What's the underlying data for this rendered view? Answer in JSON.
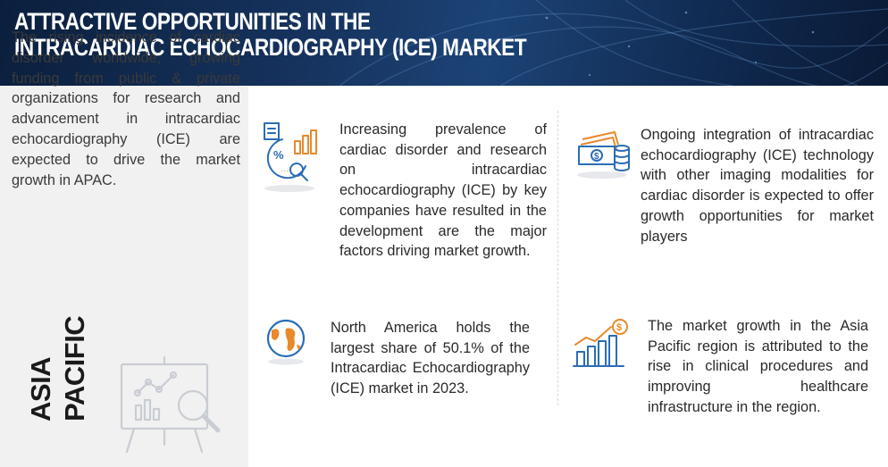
{
  "banner": {
    "title_line1": "ATTRACTIVE OPPORTUNITIES IN THE",
    "title_line2": "INTRACARDIAC ECHOCARDIOGRAPHY (ICE) MARKET"
  },
  "left_panel": {
    "summary": "The rising incidence of cardiac disorder worldwide, growing funding from public & private organizations for research and advancement in intracardiac echocardiography (ICE) are expected to drive the market growth in APAC.",
    "region_line1": "ASIA",
    "region_line2": "PACIFIC",
    "icon": "presentation-chart-magnifier-icon"
  },
  "cards": [
    {
      "icon": "percent-chart-analytics-icon",
      "text": "Increasing prevalence of cardiac disorder and research on intracardiac echocardiography (ICE) by key companies have resulted in the development are the major factors driving market growth."
    },
    {
      "icon": "money-coins-icon",
      "text": "Ongoing integration of intracardiac echocardiography (ICE) technology with other imaging modalities for cardiac disorder is expected to offer growth opportunities for market players"
    },
    {
      "icon": "globe-icon",
      "text": "North America holds the largest share of 50.1% of the Intracardiac Echocardiography (ICE) market in 2023."
    },
    {
      "icon": "growth-bar-chart-dollar-icon",
      "text": "The market growth in the Asia Pacific region is attributed to the rise in clinical procedures and improving healthcare infrastructure in the region."
    }
  ],
  "colors": {
    "banner_dark": "#0b1f3d",
    "banner_mid": "#1c4376",
    "icon_blue": "#2a6db5",
    "icon_orange": "#e8892b",
    "left_panel_bg": "#f1f1f1"
  }
}
